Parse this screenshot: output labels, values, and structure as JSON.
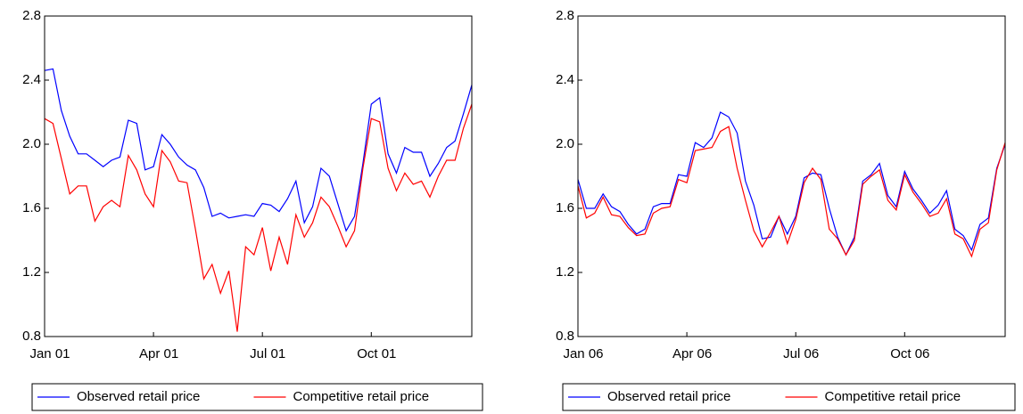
{
  "chart_data": [
    {
      "type": "line",
      "categories": [
        "Jan 01",
        null,
        null,
        null,
        null,
        null,
        null,
        null,
        null,
        null,
        null,
        null,
        null,
        "Apr 01",
        null,
        null,
        null,
        null,
        null,
        null,
        null,
        null,
        null,
        null,
        null,
        null,
        "Jul 01",
        null,
        null,
        null,
        null,
        null,
        null,
        null,
        null,
        null,
        null,
        null,
        null,
        "Oct 01",
        null,
        null,
        null,
        null,
        null,
        null,
        null,
        null,
        null,
        null,
        null,
        null
      ],
      "series": [
        {
          "name": "Observed retail price",
          "color": "#0000ff",
          "values": [
            2.46,
            2.47,
            2.21,
            2.05,
            1.94,
            1.94,
            1.9,
            1.86,
            1.9,
            1.92,
            2.15,
            2.13,
            1.84,
            1.86,
            2.06,
            2.0,
            1.92,
            1.87,
            1.84,
            1.73,
            1.55,
            1.57,
            1.54,
            1.55,
            1.56,
            1.55,
            1.63,
            1.62,
            1.58,
            1.66,
            1.77,
            1.51,
            1.61,
            1.85,
            1.8,
            1.63,
            1.46,
            1.55,
            1.88,
            2.25,
            2.29,
            1.94,
            1.82,
            1.98,
            1.95,
            1.95,
            1.8,
            1.88,
            1.98,
            2.02,
            2.19,
            2.37
          ]
        },
        {
          "name": "Competitive retail price",
          "color": "#ff0000",
          "values": [
            2.16,
            2.13,
            1.91,
            1.69,
            1.74,
            1.74,
            1.52,
            1.61,
            1.65,
            1.61,
            1.93,
            1.84,
            1.69,
            1.61,
            1.96,
            1.89,
            1.77,
            1.76,
            1.47,
            1.16,
            1.25,
            1.07,
            1.21,
            0.83,
            1.36,
            1.31,
            1.48,
            1.21,
            1.42,
            1.25,
            1.56,
            1.42,
            1.51,
            1.67,
            1.61,
            1.49,
            1.36,
            1.46,
            1.85,
            2.16,
            2.14,
            1.85,
            1.71,
            1.82,
            1.75,
            1.77,
            1.67,
            1.8,
            1.9,
            1.9,
            2.1,
            2.25
          ]
        }
      ],
      "ylim": [
        0.8,
        2.8
      ],
      "yticks": [
        0.8,
        1.2,
        1.6,
        {
          "value": 2,
          "label": "2.0"
        },
        2.4,
        2.8
      ]
    },
    {
      "type": "line",
      "categories": [
        "Jan 06",
        null,
        null,
        null,
        null,
        null,
        null,
        null,
        null,
        null,
        null,
        null,
        null,
        "Apr 06",
        null,
        null,
        null,
        null,
        null,
        null,
        null,
        null,
        null,
        null,
        null,
        null,
        "Jul 06",
        null,
        null,
        null,
        null,
        null,
        null,
        null,
        null,
        null,
        null,
        null,
        null,
        "Oct 06",
        null,
        null,
        null,
        null,
        null,
        null,
        null,
        null,
        null,
        null,
        null,
        null
      ],
      "series": [
        {
          "name": "Observed retail price",
          "color": "#0000ff",
          "values": [
            1.78,
            1.6,
            1.6,
            1.69,
            1.61,
            1.58,
            1.5,
            1.44,
            1.47,
            1.61,
            1.63,
            1.63,
            1.81,
            1.8,
            2.01,
            1.98,
            2.04,
            2.2,
            2.17,
            2.07,
            1.77,
            1.62,
            1.41,
            1.42,
            1.55,
            1.44,
            1.55,
            1.79,
            1.82,
            1.81,
            1.6,
            1.42,
            1.31,
            1.42,
            1.77,
            1.81,
            1.88,
            1.68,
            1.61,
            1.83,
            1.72,
            1.65,
            1.57,
            1.62,
            1.71,
            1.47,
            1.43,
            1.34,
            1.5,
            1.54,
            1.85,
            2.0
          ]
        },
        {
          "name": "Competitive retail price",
          "color": "#ff0000",
          "values": [
            1.74,
            1.54,
            1.57,
            1.67,
            1.56,
            1.55,
            1.48,
            1.43,
            1.44,
            1.57,
            1.6,
            1.61,
            1.78,
            1.76,
            1.96,
            1.97,
            1.98,
            2.08,
            2.11,
            1.85,
            1.65,
            1.46,
            1.36,
            1.45,
            1.55,
            1.38,
            1.53,
            1.76,
            1.85,
            1.78,
            1.47,
            1.41,
            1.31,
            1.4,
            1.75,
            1.8,
            1.84,
            1.65,
            1.59,
            1.81,
            1.7,
            1.63,
            1.55,
            1.57,
            1.66,
            1.44,
            1.41,
            1.3,
            1.47,
            1.51,
            1.84,
            2.01
          ]
        }
      ],
      "ylim": [
        0.8,
        2.8
      ],
      "yticks": [
        0.8,
        1.2,
        1.6,
        {
          "value": 2,
          "label": "2.0"
        },
        2.4,
        2.8
      ]
    }
  ]
}
